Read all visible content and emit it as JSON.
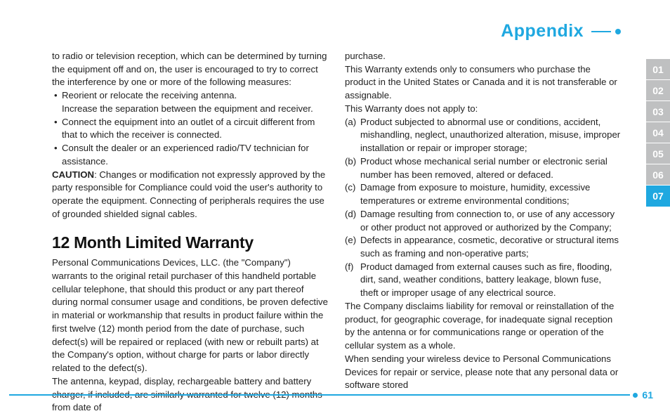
{
  "header": {
    "title": "Appendix"
  },
  "col1": {
    "intro": "to radio or television reception, which can be determined by turning the equipment off and on, the user is encouraged to try to correct the interference by one or more of the following measures:",
    "bullets": [
      "Reorient or relocate the receiving antenna.",
      "Increase the separation between the equipment and receiver.",
      "Connect the equipment into an outlet of a circuit different from that to which the receiver is connected.",
      "Consult the dealer or an experienced radio/TV technician for assistance."
    ],
    "caution_label": "CAUTION",
    "caution_text": ": Changes or modification not expressly approved by the party responsible for Compliance could void the user's authority to operate the equipment. Connecting of peripherals requires the use of grounded shielded signal cables.",
    "section_title": "12 Month Limited Warranty",
    "warranty_p1": "Personal Communications Devices, LLC. (the \"Company\") warrants to the original retail purchaser of this handheld portable cellular telephone, that should this product or any part thereof during normal consumer usage and conditions, be proven defective in material or workmanship that results in product failure within the first twelve (12) month period from the date of purchase, such defect(s) will be repaired or replaced (with new or rebuilt parts) at the Company's option, without charge for parts or labor directly related to the defect(s).",
    "warranty_p2": "The antenna, keypad, display, rechargeable battery and battery charger, if included, are similarly warranted for twelve (12) months from date of"
  },
  "col2": {
    "purchase": "purchase.",
    "extends": "This Warranty extends only to consumers who purchase the product in the United States or Canada and it is not transferable or assignable.",
    "not_apply": "This Warranty does not apply to:",
    "items": [
      {
        "label": "(a)",
        "text": "Product subjected to abnormal use or conditions, accident, mishandling, neglect, unauthorized alteration, misuse, improper installation or repair or improper storage;"
      },
      {
        "label": "(b)",
        "text": "Product whose mechanical serial number or electronic serial number has been removed, altered or defaced."
      },
      {
        "label": "(c)",
        "text": "Damage from exposure to moisture, humidity, excessive temperatures or extreme environmental conditions;"
      },
      {
        "label": "(d)",
        "text": "Damage resulting from connection to, or use of any accessory or other product not approved or authorized by the Company;"
      },
      {
        "label": "(e)",
        "text": "Defects in appearance, cosmetic, decorative or structural items such as framing and non-operative parts;"
      },
      {
        "label": "(f)",
        "text": "Product damaged from external causes such as fire, flooding, dirt, sand, weather conditions, battery leakage, blown fuse, theft or improper usage of any electrical source."
      }
    ],
    "disclaim": "The Company disclaims liability for removal or reinstallation of the product, for geographic coverage, for inadequate signal reception by the antenna or for communications range or operation of the cellular system as a whole.",
    "sending": "When sending your wireless device to Personal Communications Devices for repair or service, please note that any personal data or software stored"
  },
  "tabs": [
    "01",
    "02",
    "03",
    "04",
    "05",
    "06",
    "07"
  ],
  "active_tab": "07",
  "page_number": "61",
  "colors": {
    "accent": "#1fa8e0",
    "tab_inactive": "#bfc0c1"
  }
}
